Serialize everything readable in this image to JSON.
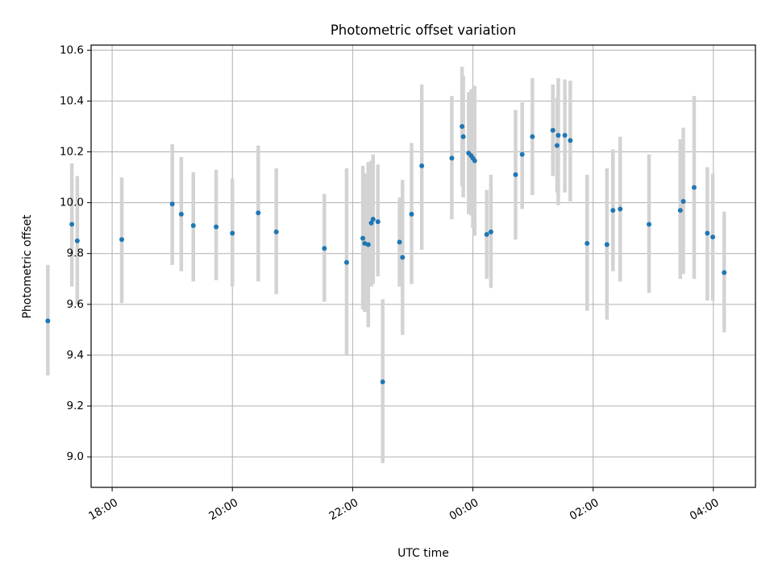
{
  "chart_data": {
    "type": "scatter",
    "title": "Photometric offset variation",
    "xlabel": "UTC time",
    "ylabel": "Photometric offset",
    "x_units": "hours since 00:00 UTC (negative = previous day)",
    "xlim": [
      -6.35,
      4.7
    ],
    "ylim": [
      8.88,
      10.62
    ],
    "xticks": [
      {
        "value": -6,
        "label": "18:00"
      },
      {
        "value": -4,
        "label": "20:00"
      },
      {
        "value": -2,
        "label": "22:00"
      },
      {
        "value": 0,
        "label": "00:00"
      },
      {
        "value": 2,
        "label": "02:00"
      },
      {
        "value": 4,
        "label": "04:00"
      }
    ],
    "yticks": [
      {
        "value": 9.0,
        "label": "9.0"
      },
      {
        "value": 9.2,
        "label": "9.2"
      },
      {
        "value": 9.4,
        "label": "9.4"
      },
      {
        "value": 9.6,
        "label": "9.6"
      },
      {
        "value": 9.8,
        "label": "9.8"
      },
      {
        "value": 10.0,
        "label": "10.0"
      },
      {
        "value": 10.2,
        "label": "10.2"
      },
      {
        "value": 10.4,
        "label": "10.4"
      },
      {
        "value": 10.6,
        "label": "10.6"
      }
    ],
    "grid": true,
    "colors": {
      "point": "#1f77b4",
      "errorbar": "#d3d3d3",
      "grid": "#b0b0b0",
      "axes": "#000000"
    },
    "points": [
      {
        "x": -7.07,
        "y": 9.535,
        "lo": 9.32,
        "hi": 9.755
      },
      {
        "x": -6.67,
        "y": 9.915,
        "lo": 9.67,
        "hi": 10.155
      },
      {
        "x": -6.58,
        "y": 9.85,
        "lo": 9.6,
        "hi": 10.105
      },
      {
        "x": -5.84,
        "y": 9.855,
        "lo": 9.605,
        "hi": 10.1
      },
      {
        "x": -5.0,
        "y": 9.995,
        "lo": 9.755,
        "hi": 10.23
      },
      {
        "x": -4.85,
        "y": 9.955,
        "lo": 9.73,
        "hi": 10.18
      },
      {
        "x": -4.65,
        "y": 9.91,
        "lo": 9.69,
        "hi": 10.12
      },
      {
        "x": -4.27,
        "y": 9.905,
        "lo": 9.695,
        "hi": 10.13
      },
      {
        "x": -4.0,
        "y": 9.88,
        "lo": 9.67,
        "hi": 10.095
      },
      {
        "x": -3.57,
        "y": 9.96,
        "lo": 9.69,
        "hi": 10.225
      },
      {
        "x": -3.27,
        "y": 9.885,
        "lo": 9.64,
        "hi": 10.135
      },
      {
        "x": -2.47,
        "y": 9.82,
        "lo": 9.61,
        "hi": 10.035
      },
      {
        "x": -2.1,
        "y": 9.765,
        "lo": 9.4,
        "hi": 10.135
      },
      {
        "x": -1.83,
        "y": 9.86,
        "lo": 9.58,
        "hi": 10.145
      },
      {
        "x": -1.8,
        "y": 9.84,
        "lo": 9.57,
        "hi": 10.115
      },
      {
        "x": -1.74,
        "y": 9.835,
        "lo": 9.51,
        "hi": 10.16
      },
      {
        "x": -1.69,
        "y": 9.92,
        "lo": 9.67,
        "hi": 10.165
      },
      {
        "x": -1.66,
        "y": 9.935,
        "lo": 9.68,
        "hi": 10.19
      },
      {
        "x": -1.58,
        "y": 9.925,
        "lo": 9.71,
        "hi": 10.15
      },
      {
        "x": -1.5,
        "y": 9.295,
        "lo": 8.975,
        "hi": 9.62
      },
      {
        "x": -1.22,
        "y": 9.845,
        "lo": 9.67,
        "hi": 10.02
      },
      {
        "x": -1.17,
        "y": 9.785,
        "lo": 9.48,
        "hi": 10.09
      },
      {
        "x": -1.02,
        "y": 9.955,
        "lo": 9.68,
        "hi": 10.235
      },
      {
        "x": -0.85,
        "y": 10.145,
        "lo": 9.815,
        "hi": 10.465
      },
      {
        "x": -0.35,
        "y": 10.175,
        "lo": 9.935,
        "hi": 10.42
      },
      {
        "x": -0.18,
        "y": 10.3,
        "lo": 10.065,
        "hi": 10.535
      },
      {
        "x": -0.16,
        "y": 10.26,
        "lo": 10.02,
        "hi": 10.5
      },
      {
        "x": -0.07,
        "y": 10.195,
        "lo": 9.955,
        "hi": 10.435
      },
      {
        "x": -0.03,
        "y": 10.185,
        "lo": 9.95,
        "hi": 10.445
      },
      {
        "x": 0.0,
        "y": 10.175,
        "lo": 9.9,
        "hi": 10.45
      },
      {
        "x": 0.03,
        "y": 10.165,
        "lo": 9.87,
        "hi": 10.46
      },
      {
        "x": 0.23,
        "y": 9.875,
        "lo": 9.7,
        "hi": 10.05
      },
      {
        "x": 0.3,
        "y": 9.885,
        "lo": 9.665,
        "hi": 10.11
      },
      {
        "x": 0.71,
        "y": 10.11,
        "lo": 9.855,
        "hi": 10.365
      },
      {
        "x": 0.82,
        "y": 10.19,
        "lo": 9.975,
        "hi": 10.395
      },
      {
        "x": 0.99,
        "y": 10.26,
        "lo": 10.03,
        "hi": 10.49
      },
      {
        "x": 1.33,
        "y": 10.285,
        "lo": 10.105,
        "hi": 10.465
      },
      {
        "x": 1.42,
        "y": 10.265,
        "lo": 9.99,
        "hi": 10.49
      },
      {
        "x": 1.4,
        "y": 10.225,
        "lo": 10.04,
        "hi": 10.415
      },
      {
        "x": 1.53,
        "y": 10.265,
        "lo": 10.04,
        "hi": 10.485
      },
      {
        "x": 1.62,
        "y": 10.245,
        "lo": 10.005,
        "hi": 10.48
      },
      {
        "x": 1.9,
        "y": 9.84,
        "lo": 9.575,
        "hi": 10.11
      },
      {
        "x": 2.23,
        "y": 9.835,
        "lo": 9.54,
        "hi": 10.135
      },
      {
        "x": 2.33,
        "y": 9.97,
        "lo": 9.73,
        "hi": 10.21
      },
      {
        "x": 2.45,
        "y": 9.975,
        "lo": 9.69,
        "hi": 10.26
      },
      {
        "x": 2.93,
        "y": 9.915,
        "lo": 9.645,
        "hi": 10.19
      },
      {
        "x": 3.45,
        "y": 9.97,
        "lo": 9.7,
        "hi": 10.25
      },
      {
        "x": 3.5,
        "y": 10.005,
        "lo": 9.72,
        "hi": 10.295
      },
      {
        "x": 3.68,
        "y": 10.06,
        "lo": 9.7,
        "hi": 10.42
      },
      {
        "x": 3.9,
        "y": 9.88,
        "lo": 9.615,
        "hi": 10.14
      },
      {
        "x": 3.99,
        "y": 9.865,
        "lo": 9.615,
        "hi": 10.115
      },
      {
        "x": 4.18,
        "y": 9.725,
        "lo": 9.49,
        "hi": 9.965
      }
    ]
  }
}
